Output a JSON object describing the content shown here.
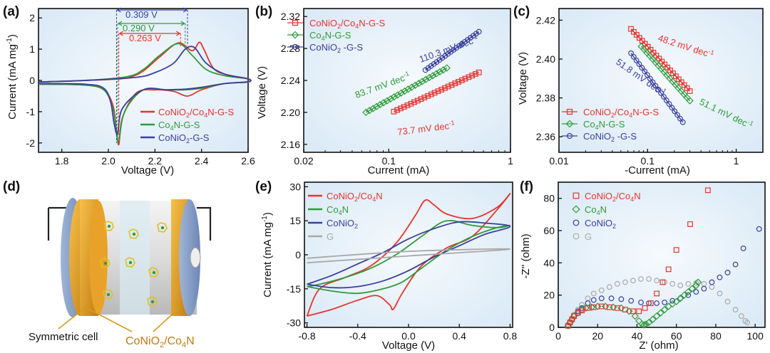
{
  "figure": {
    "colors": {
      "red": "#e8332d",
      "green": "#2f9b3a",
      "blue": "#3a3f9e",
      "gray": "#a9a9a9",
      "gold": "#d89a1c",
      "bg": "#e4eff8"
    }
  },
  "chart_data": [
    {
      "panel": "(a)",
      "type": "line",
      "xlabel": "Voltage (V)",
      "ylabel": "Current (mA mg",
      "ylabel_sup": "-1",
      "ylabel_close": ")",
      "xlim": [
        1.7,
        2.6
      ],
      "ylim": [
        -2.3,
        2.3
      ],
      "xticks": [
        "1.8",
        "2.0",
        "2.2",
        "2.4",
        "2.6"
      ],
      "xtick_values": [
        1.8,
        2.0,
        2.2,
        2.4,
        2.6
      ],
      "yticks": [
        "-2",
        "-1",
        "0",
        "1",
        "2"
      ],
      "ytick_values": [
        -2,
        -1,
        0,
        1,
        2
      ],
      "legend": [
        {
          "main": "CoNiO",
          "sub1": "2",
          "mid": "/Co",
          "sub2": "4",
          "end": "N-G-S",
          "color": "red"
        },
        {
          "main": "Co",
          "sub1": "4",
          "mid": "N-G-S",
          "sub2": "",
          "end": "",
          "color": "green"
        },
        {
          "main": "CoNiO",
          "sub1": "2",
          "mid": "-G-S",
          "sub2": "",
          "end": "",
          "color": "blue"
        }
      ],
      "annotations": [
        {
          "text": "0.309 V",
          "color": "blue"
        },
        {
          "text": "0.290 V",
          "color": "green"
        },
        {
          "text": "0.263 V",
          "color": "red"
        }
      ],
      "series": [
        {
          "name": "CoNiO2/Co4N-G-S",
          "color": "red",
          "x": [
            1.7,
            1.9,
            1.98,
            2.02,
            2.035,
            2.045,
            2.06,
            2.12,
            2.2,
            2.28,
            2.34,
            2.4,
            2.5,
            2.6,
            2.6,
            2.5,
            2.45,
            2.41,
            2.39,
            2.36,
            2.3,
            2.22,
            2.15,
            2.1,
            2.05,
            1.9,
            1.7
          ],
          "y": [
            -0.12,
            -0.15,
            -0.3,
            -0.8,
            -1.6,
            -2.05,
            -1.2,
            -0.4,
            -0.3,
            -0.35,
            -0.5,
            -0.3,
            -0.1,
            -0.05,
            0.05,
            0.2,
            0.4,
            1.0,
            1.22,
            0.95,
            1.2,
            0.75,
            0.3,
            0.12,
            0.05,
            0.0,
            -0.05
          ]
        },
        {
          "name": "Co4N-G-S",
          "color": "green",
          "x": [
            1.7,
            1.9,
            1.98,
            2.02,
            2.035,
            2.045,
            2.07,
            2.15,
            2.25,
            2.33,
            2.4,
            2.5,
            2.6,
            2.6,
            2.5,
            2.42,
            2.36,
            2.3,
            2.22,
            2.15,
            2.08,
            1.9,
            1.7
          ],
          "y": [
            -0.12,
            -0.15,
            -0.3,
            -0.9,
            -1.7,
            -1.95,
            -1.0,
            -0.3,
            -0.3,
            -0.3,
            -0.25,
            -0.1,
            -0.05,
            0.05,
            0.15,
            0.35,
            0.8,
            1.18,
            0.8,
            0.35,
            0.12,
            0.0,
            -0.05
          ]
        },
        {
          "name": "CoNiO2-G-S",
          "color": "blue",
          "x": [
            1.7,
            1.9,
            1.98,
            2.01,
            2.025,
            2.04,
            2.06,
            2.15,
            2.25,
            2.33,
            2.4,
            2.5,
            2.6,
            2.6,
            2.5,
            2.42,
            2.37,
            2.33,
            2.28,
            2.2,
            2.12,
            1.9,
            1.7
          ],
          "y": [
            -0.1,
            -0.12,
            -0.25,
            -0.7,
            -1.4,
            -1.7,
            -0.9,
            -0.3,
            -0.3,
            -0.28,
            -0.22,
            -0.1,
            -0.04,
            0.05,
            0.2,
            0.55,
            1.05,
            1.0,
            0.55,
            0.25,
            0.1,
            0.0,
            -0.05
          ]
        }
      ]
    },
    {
      "panel": "(b)",
      "type": "scatter",
      "xlabel": "Current (mA)",
      "ylabel": "Voltage (V)",
      "xscale": "log",
      "xlim": [
        0.02,
        1
      ],
      "ylim": [
        2.15,
        2.33
      ],
      "xticks": [
        "0.02",
        "0.1",
        "1"
      ],
      "xtick_values": [
        0.02,
        0.1,
        1
      ],
      "yticks": [
        "2.16",
        "2.20",
        "2.24",
        "2.28",
        "2.32"
      ],
      "ytick_values": [
        2.16,
        2.2,
        2.24,
        2.28,
        2.32
      ],
      "legend": [
        {
          "main": "CoNiO",
          "sub1": "2",
          "mid": "/Co",
          "sub2": "4",
          "end": "N-G-S",
          "color": "red",
          "marker": "square"
        },
        {
          "main": "Co",
          "sub1": "4",
          "mid": "N-G-S",
          "sub2": "",
          "end": "",
          "color": "green",
          "marker": "diamond"
        },
        {
          "main": "CoNiO",
          "sub1": "2",
          "mid": " -G-S",
          "sub2": "",
          "end": "",
          "color": "blue",
          "marker": "circle"
        }
      ],
      "annotations": [
        {
          "text": "83.7 mV dec",
          "sup": "-1",
          "color": "green"
        },
        {
          "text": "110.3 mV dec",
          "sup": "-1",
          "color": "blue"
        },
        {
          "text": "73.7 mV dec",
          "sup": "-1",
          "color": "red"
        }
      ],
      "series": [
        {
          "name": "CoNiO2/Co4N-G-S",
          "color": "red",
          "marker": "square",
          "x_range": [
            0.11,
            0.55
          ],
          "y_range": [
            2.201,
            2.25
          ],
          "n": 26
        },
        {
          "name": "Co4N-G-S",
          "color": "green",
          "marker": "diamond",
          "x_range": [
            0.065,
            0.3
          ],
          "y_range": [
            2.2,
            2.2556
          ],
          "n": 24
        },
        {
          "name": "CoNiO2-G-S",
          "color": "blue",
          "marker": "circle",
          "x_range": [
            0.2,
            0.55
          ],
          "y_range": [
            2.253,
            2.301
          ],
          "n": 20
        }
      ]
    },
    {
      "panel": "(c)",
      "type": "scatter",
      "xlabel": "-Current (mA)",
      "ylabel": "Voltage (V)",
      "xscale": "log",
      "xlim": [
        0.01,
        2
      ],
      "ylim": [
        2.352,
        2.426
      ],
      "xticks": [
        "0.01",
        "0.1",
        "1"
      ],
      "xtick_values": [
        0.01,
        0.1,
        1
      ],
      "yticks": [
        "2.36",
        "2.38",
        "2.40",
        "2.42"
      ],
      "ytick_values": [
        2.36,
        2.38,
        2.4,
        2.42
      ],
      "legend": [
        {
          "main": "CoNiO",
          "sub1": "2",
          "mid": "/Co",
          "sub2": "4",
          "end": "N-G-S",
          "color": "red",
          "marker": "square"
        },
        {
          "main": "Co",
          "sub1": "4",
          "mid": "N-G-S",
          "sub2": "",
          "end": "",
          "color": "green",
          "marker": "diamond"
        },
        {
          "main": "CoNiO",
          "sub1": "2",
          "mid": " -G-S",
          "sub2": "",
          "end": "",
          "color": "blue",
          "marker": "circle"
        }
      ],
      "annotations": [
        {
          "text": "48.2 mV dec",
          "sup": "-1",
          "color": "red"
        },
        {
          "text": "51.8 mV dec",
          "sup": "-1",
          "color": "blue"
        },
        {
          "text": "51.1 mV dec",
          "sup": "-1",
          "color": "green"
        }
      ],
      "series": [
        {
          "name": "CoNiO2/Co4N-G-S",
          "color": "red",
          "marker": "square",
          "x_range": [
            0.065,
            0.3
          ],
          "y_range": [
            2.4155,
            2.3835
          ],
          "n": 22
        },
        {
          "name": "Co4N-G-S",
          "color": "green",
          "marker": "diamond",
          "x_range": [
            0.085,
            0.3
          ],
          "y_range": [
            2.4065,
            2.3785
          ],
          "n": 18
        },
        {
          "name": "CoNiO2-G-S",
          "color": "blue",
          "marker": "circle",
          "x_range": [
            0.065,
            0.25
          ],
          "y_range": [
            2.403,
            2.3675
          ],
          "n": 20
        }
      ]
    },
    {
      "panel": "(d)",
      "type": "diagram",
      "caption_left": "Symmetric cell",
      "caption_right": {
        "main": "CoNiO",
        "sub1": "2",
        "mid": "/Co",
        "sub2": "4",
        "end": "N"
      }
    },
    {
      "panel": "(e)",
      "type": "line",
      "xlabel": "Voltage (V)",
      "ylabel": "Current (mA mg",
      "ylabel_sup": "-1",
      "ylabel_close": ")",
      "xlim": [
        -0.82,
        0.82
      ],
      "ylim": [
        -32,
        32
      ],
      "xticks": [
        "-0.8",
        "-0.4",
        "0.0",
        "0.4",
        "0.8"
      ],
      "xtick_values": [
        -0.8,
        -0.4,
        0.0,
        0.4,
        0.8
      ],
      "yticks": [
        "-30",
        "-15",
        "0",
        "15",
        "30"
      ],
      "ytick_values": [
        -30,
        -15,
        0,
        15,
        30
      ],
      "legend": [
        {
          "main": "CoNiO",
          "sub1": "2",
          "mid": "/Co",
          "sub2": "4",
          "end": "N",
          "color": "red"
        },
        {
          "main": "Co",
          "sub1": "4",
          "mid": "N",
          "sub2": "",
          "end": "",
          "color": "green"
        },
        {
          "main": "CoNiO",
          "sub1": "2",
          "mid": "",
          "sub2": "",
          "end": "",
          "color": "blue"
        },
        {
          "main": "G",
          "sub1": "",
          "mid": "",
          "sub2": "",
          "end": "",
          "color": "gray"
        }
      ],
      "series": [
        {
          "name": "CoNiO2/Co4N",
          "color": "red",
          "x": [
            -0.8,
            -0.6,
            -0.4,
            -0.25,
            -0.15,
            -0.12,
            -0.05,
            0.1,
            0.3,
            0.5,
            0.7,
            0.8,
            0.7,
            0.5,
            0.3,
            0.2,
            0.13,
            0.05,
            -0.1,
            -0.3,
            -0.5,
            -0.7,
            -0.8
          ],
          "y": [
            -27,
            -24,
            -20,
            -18,
            -22,
            -24,
            -17,
            -5,
            3,
            8,
            20,
            27,
            21,
            16,
            18,
            22,
            24,
            17,
            5,
            -5,
            -10,
            -15,
            -27
          ]
        },
        {
          "name": "Co4N",
          "color": "green",
          "x": [
            -0.8,
            -0.6,
            -0.4,
            -0.2,
            -0.05,
            0.1,
            0.3,
            0.5,
            0.7,
            0.8,
            0.7,
            0.5,
            0.35,
            0.25,
            0.1,
            -0.1,
            -0.3,
            -0.5,
            -0.7,
            -0.8
          ],
          "y": [
            -14,
            -16,
            -17,
            -15,
            -12,
            -6,
            2,
            8,
            12,
            13,
            12,
            13,
            15,
            14,
            8,
            0,
            -6,
            -10,
            -13,
            -14
          ]
        },
        {
          "name": "CoNiO2",
          "color": "blue",
          "x": [
            -0.8,
            -0.6,
            -0.4,
            -0.2,
            0.0,
            0.2,
            0.4,
            0.6,
            0.8,
            0.6,
            0.4,
            0.2,
            0.0,
            -0.2,
            -0.4,
            -0.6,
            -0.8
          ],
          "y": [
            -13,
            -14.5,
            -14,
            -11.5,
            -7,
            -1,
            4,
            9,
            12.5,
            14,
            14.5,
            11.5,
            7,
            1,
            -4,
            -9,
            -13
          ]
        },
        {
          "name": "G",
          "color": "gray",
          "x": [
            -0.8,
            0.0,
            0.8,
            0.0,
            -0.8
          ],
          "y": [
            -3.5,
            -0.5,
            2.5,
            1.5,
            -1.5
          ]
        }
      ]
    },
    {
      "panel": "(f)",
      "type": "scatter",
      "xlabel": "Z' (ohm)",
      "ylabel": "-Z'' (ohm)",
      "xlim": [
        0,
        105
      ],
      "ylim": [
        0,
        90
      ],
      "xticks": [
        "0",
        "20",
        "40",
        "60",
        "80",
        "100"
      ],
      "xtick_values": [
        0,
        20,
        40,
        60,
        80,
        100
      ],
      "yticks": [
        "0",
        "20",
        "40",
        "60",
        "80"
      ],
      "ytick_values": [
        0,
        20,
        40,
        60,
        80
      ],
      "legend": [
        {
          "main": "CoNiO",
          "sub1": "2",
          "mid": "/Co",
          "sub2": "4",
          "end": "N",
          "color": "red",
          "marker": "square"
        },
        {
          "main": "Co",
          "sub1": "4",
          "mid": "N",
          "sub2": "",
          "end": "",
          "color": "green",
          "marker": "diamond"
        },
        {
          "main": "CoNiO",
          "sub1": "2",
          "mid": "",
          "sub2": "",
          "end": "",
          "color": "blue",
          "marker": "circle"
        },
        {
          "main": "G",
          "sub1": "",
          "mid": "",
          "sub2": "",
          "end": "",
          "color": "gray",
          "marker": "circle"
        }
      ],
      "series": [
        {
          "name": "CoNiO2/Co4N",
          "color": "red",
          "marker": "square",
          "x": [
            5,
            6,
            7,
            8,
            10,
            12,
            15,
            18,
            22,
            26,
            30,
            34,
            38,
            41,
            44,
            47,
            50,
            53,
            56,
            60,
            67,
            76
          ],
          "y": [
            1,
            3,
            5,
            7,
            9,
            10.5,
            12,
            12.5,
            13,
            12.5,
            12,
            11,
            10,
            10,
            12,
            15,
            21,
            28,
            36,
            48,
            64,
            85
          ]
        },
        {
          "name": "Co4N",
          "color": "green",
          "marker": "diamond",
          "x": [
            5,
            6,
            7,
            8,
            10,
            12,
            14,
            17,
            20,
            24,
            28,
            32,
            36,
            39,
            41,
            42.5,
            43.5,
            44.5,
            46,
            48,
            50,
            52,
            54,
            56,
            58,
            60,
            62,
            64,
            66,
            68,
            70,
            71
          ],
          "y": [
            1,
            3,
            5,
            7,
            9,
            11,
            12,
            12.5,
            13,
            13,
            12.5,
            12,
            10,
            7,
            4,
            2,
            1.5,
            2,
            3,
            5,
            7,
            9,
            11,
            13,
            14.5,
            16,
            18,
            20,
            22,
            24,
            26,
            28
          ]
        },
        {
          "name": "CoNiO2",
          "color": "blue",
          "marker": "circle",
          "x": [
            5,
            6,
            7,
            8,
            10,
            12,
            15,
            18,
            22,
            27,
            32,
            37,
            42,
            46,
            50,
            54,
            58,
            62,
            66,
            70,
            74,
            78,
            82,
            86,
            90,
            94,
            102
          ],
          "y": [
            1,
            3,
            5,
            7,
            10,
            12,
            15,
            17,
            18,
            18,
            17.5,
            16.5,
            15.5,
            15,
            15,
            15.5,
            16.5,
            18,
            20,
            22,
            24,
            28,
            31,
            34,
            39,
            49,
            61
          ]
        },
        {
          "name": "G",
          "color": "gray",
          "marker": "circle",
          "x": [
            5,
            6,
            7,
            8,
            10,
            12,
            15,
            18,
            22,
            26,
            30,
            34,
            38,
            42,
            46,
            50,
            54,
            58,
            62,
            66,
            70,
            74,
            78,
            82,
            86,
            90,
            93,
            95,
            96
          ],
          "y": [
            1,
            3,
            5,
            8,
            11,
            14,
            18,
            21,
            23,
            25,
            27,
            28,
            29,
            30,
            30,
            29,
            28,
            27,
            26,
            27,
            27.5,
            27,
            25,
            21,
            16,
            11,
            7,
            4,
            3
          ]
        }
      ]
    }
  ]
}
